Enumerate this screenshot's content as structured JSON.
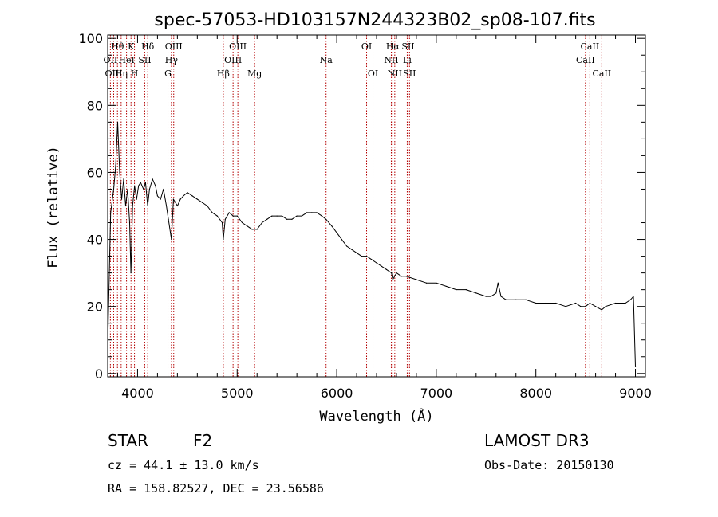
{
  "chart_data": {
    "type": "line",
    "title": "spec-57053-HD103157N244323B02_sp08-107.fits",
    "xlabel": "Wavelength (Å)",
    "ylabel": "Flux (relative)",
    "xlim": [
      3700,
      9100
    ],
    "ylim": [
      -1,
      101
    ],
    "xticks": [
      4000,
      5000,
      6000,
      7000,
      8000,
      9000
    ],
    "yticks": [
      0,
      20,
      40,
      60,
      80,
      100
    ],
    "grid": false,
    "series": [
      {
        "name": "spectrum",
        "x": [
          3700,
          3730,
          3760,
          3780,
          3800,
          3820,
          3840,
          3860,
          3880,
          3900,
          3920,
          3933,
          3950,
          3970,
          3990,
          4010,
          4030,
          4060,
          4080,
          4101,
          4120,
          4150,
          4180,
          4200,
          4230,
          4260,
          4290,
          4310,
          4330,
          4340,
          4360,
          4400,
          4430,
          4460,
          4500,
          4550,
          4600,
          4650,
          4700,
          4750,
          4800,
          4850,
          4861,
          4880,
          4920,
          4960,
          5000,
          5050,
          5100,
          5150,
          5200,
          5250,
          5300,
          5350,
          5400,
          5450,
          5500,
          5550,
          5600,
          5650,
          5700,
          5750,
          5800,
          5850,
          5893,
          5950,
          6000,
          6050,
          6100,
          6150,
          6200,
          6250,
          6300,
          6350,
          6400,
          6450,
          6500,
          6550,
          6563,
          6600,
          6650,
          6700,
          6800,
          6900,
          7000,
          7100,
          7200,
          7300,
          7400,
          7500,
          7550,
          7600,
          7620,
          7650,
          7700,
          7800,
          7900,
          8000,
          8100,
          8200,
          8300,
          8400,
          8450,
          8498,
          8542,
          8600,
          8662,
          8700,
          8800,
          8900,
          8950,
          8980,
          9000
        ],
        "y": [
          8,
          48,
          55,
          62,
          75,
          60,
          52,
          58,
          50,
          55,
          45,
          30,
          50,
          56,
          52,
          56,
          57,
          55,
          57,
          50,
          55,
          58,
          56,
          53,
          52,
          55,
          50,
          46,
          42,
          40,
          52,
          50,
          52,
          53,
          54,
          53,
          52,
          51,
          50,
          48,
          47,
          45,
          40,
          46,
          48,
          47,
          47,
          45,
          44,
          43,
          43,
          45,
          46,
          47,
          47,
          47,
          46,
          46,
          47,
          47,
          48,
          48,
          48,
          47,
          46,
          44,
          42,
          40,
          38,
          37,
          36,
          35,
          35,
          34,
          33,
          32,
          31,
          30,
          28,
          30,
          29,
          29,
          28,
          27,
          27,
          26,
          25,
          25,
          24,
          23,
          23,
          24,
          27,
          23,
          22,
          22,
          22,
          21,
          21,
          21,
          20,
          21,
          20,
          20,
          21,
          20,
          19,
          20,
          21,
          21,
          22,
          23,
          2
        ]
      }
    ],
    "lines": [
      {
        "label": "Hθ",
        "x": 3798,
        "row": 0
      },
      {
        "label": "OII",
        "x": 3727,
        "row": 1
      },
      {
        "label": "OIII",
        "x": 3760,
        "row": 2
      },
      {
        "label": "Hη",
        "x": 3835,
        "row": 2
      },
      {
        "label": "K",
        "x": 3934,
        "row": 0
      },
      {
        "label": "HeI",
        "x": 3889,
        "row": 1
      },
      {
        "label": "SII",
        "x": 4072,
        "row": 1
      },
      {
        "label": "H",
        "x": 3969,
        "row": 2
      },
      {
        "label": "Hδ",
        "x": 4102,
        "row": 0
      },
      {
        "label": "OIII",
        "x": 4363,
        "row": 0
      },
      {
        "label": "Hγ",
        "x": 4340,
        "row": 1
      },
      {
        "label": "G",
        "x": 4305,
        "row": 2
      },
      {
        "label": "OIII",
        "x": 5007,
        "row": 0
      },
      {
        "label": "OIII",
        "x": 4959,
        "row": 1
      },
      {
        "label": "Hβ",
        "x": 4861,
        "row": 2
      },
      {
        "label": "Mg",
        "x": 5175,
        "row": 2
      },
      {
        "label": "Na",
        "x": 5893,
        "row": 1
      },
      {
        "label": "OI",
        "x": 6300,
        "row": 0
      },
      {
        "label": "OI",
        "x": 6364,
        "row": 2
      },
      {
        "label": "Hα",
        "x": 6563,
        "row": 0
      },
      {
        "label": "SII",
        "x": 6716,
        "row": 0
      },
      {
        "label": "NII",
        "x": 6548,
        "row": 1
      },
      {
        "label": "Li",
        "x": 6708,
        "row": 1
      },
      {
        "label": "NII",
        "x": 6583,
        "row": 2
      },
      {
        "label": "SII",
        "x": 6731,
        "row": 2
      },
      {
        "label": "CaII",
        "x": 8542,
        "row": 0
      },
      {
        "label": "CaII",
        "x": 8498,
        "row": 1
      },
      {
        "label": "CaII",
        "x": 8662,
        "row": 2
      }
    ]
  },
  "info": {
    "object_class": "STAR",
    "subclass": "F2",
    "survey": "LAMOST DR3",
    "redshift": "cz = 44.1 ± 13.0 km/s",
    "obs_date": "Obs-Date: 20150130",
    "coords": "RA = 158.82527, DEC =  23.56586"
  },
  "colors": {
    "spectrum": "#000000",
    "line_markers": "#b30000",
    "axes": "#000000"
  }
}
